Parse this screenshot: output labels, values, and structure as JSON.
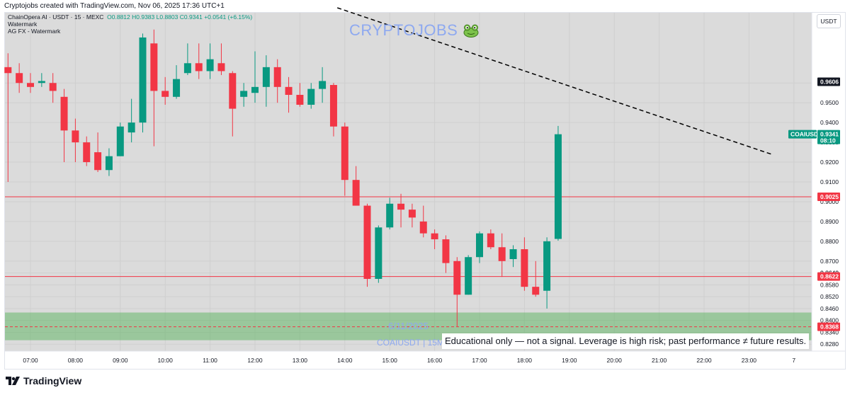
{
  "header": {
    "credit": "Cryptojobs created with TradingView.com, Nov 06, 2025 17:36 UTC+1"
  },
  "legend": {
    "title": "ChainOpera AI · USDT · 15 · MEXC",
    "ohlc": "O0.8812  H0.9383  L0.8803  C0.9341  +0.0541 (+6.15%)",
    "line2": "Watermark",
    "line3": "AG FX - Watermark"
  },
  "currency": "USDT",
  "watermark": {
    "brand": "CRYPTOJOBS",
    "date": "6/11/2025",
    "symbol": "COAIUSDT | 15M"
  },
  "disclaimer": "Educational only — not a signal. Leverage is high risk; past performance ≠ future results.",
  "footer": {
    "brand": "TradingView"
  },
  "colors": {
    "up": "#089981",
    "down": "#f23645",
    "zone": "#4caf50",
    "trendline": "#000000",
    "price_tag": "#089981",
    "level_tag": "#f23645"
  },
  "chart_data": {
    "type": "candlestick",
    "symbol": "COAIUSDT",
    "exchange": "MEXC",
    "timeframe": "15",
    "ylim": [
      0.8245,
      0.9955
    ],
    "y_ticks": [
      0.828,
      0.834,
      0.84,
      0.846,
      0.852,
      0.858,
      0.864,
      0.87,
      0.88,
      0.89,
      0.9,
      0.91,
      0.92,
      0.93,
      0.94,
      0.95,
      0.96
    ],
    "x_ticks": [
      "07:00",
      "08:00",
      "09:00",
      "10:00",
      "11:00",
      "12:00",
      "13:00",
      "14:00",
      "15:00",
      "16:00",
      "17:00",
      "18:00",
      "19:00",
      "20:00",
      "21:00",
      "22:00",
      "23:00",
      "7"
    ],
    "start_time": "06:30",
    "candles": [
      {
        "o": 0.968,
        "h": 0.975,
        "l": 0.91,
        "c": 0.965
      },
      {
        "o": 0.965,
        "h": 0.97,
        "l": 0.955,
        "c": 0.96
      },
      {
        "o": 0.96,
        "h": 0.965,
        "l": 0.955,
        "c": 0.958
      },
      {
        "o": 0.96,
        "h": 0.965,
        "l": 0.958,
        "c": 0.961
      },
      {
        "o": 0.96,
        "h": 0.965,
        "l": 0.95,
        "c": 0.956
      },
      {
        "o": 0.953,
        "h": 0.957,
        "l": 0.92,
        "c": 0.936
      },
      {
        "o": 0.936,
        "h": 0.942,
        "l": 0.92,
        "c": 0.93
      },
      {
        "o": 0.93,
        "h": 0.933,
        "l": 0.918,
        "c": 0.92
      },
      {
        "o": 0.925,
        "h": 0.935,
        "l": 0.915,
        "c": 0.916
      },
      {
        "o": 0.916,
        "h": 0.927,
        "l": 0.913,
        "c": 0.923
      },
      {
        "o": 0.923,
        "h": 0.94,
        "l": 0.923,
        "c": 0.938
      },
      {
        "o": 0.935,
        "h": 0.952,
        "l": 0.93,
        "c": 0.94
      },
      {
        "o": 0.94,
        "h": 0.985,
        "l": 0.935,
        "c": 0.983
      },
      {
        "o": 0.98,
        "h": 0.987,
        "l": 0.928,
        "c": 0.956
      },
      {
        "o": 0.956,
        "h": 0.963,
        "l": 0.949,
        "c": 0.953
      },
      {
        "o": 0.953,
        "h": 0.969,
        "l": 0.952,
        "c": 0.962
      },
      {
        "o": 0.965,
        "h": 0.98,
        "l": 0.964,
        "c": 0.97
      },
      {
        "o": 0.97,
        "h": 0.98,
        "l": 0.962,
        "c": 0.966
      },
      {
        "o": 0.966,
        "h": 0.98,
        "l": 0.962,
        "c": 0.972
      },
      {
        "o": 0.97,
        "h": 0.98,
        "l": 0.964,
        "c": 0.966
      },
      {
        "o": 0.965,
        "h": 0.966,
        "l": 0.933,
        "c": 0.947
      },
      {
        "o": 0.953,
        "h": 0.96,
        "l": 0.948,
        "c": 0.956
      },
      {
        "o": 0.955,
        "h": 0.976,
        "l": 0.95,
        "c": 0.958
      },
      {
        "o": 0.958,
        "h": 0.974,
        "l": 0.948,
        "c": 0.968
      },
      {
        "o": 0.968,
        "h": 0.972,
        "l": 0.95,
        "c": 0.958
      },
      {
        "o": 0.958,
        "h": 0.963,
        "l": 0.945,
        "c": 0.954
      },
      {
        "o": 0.954,
        "h": 0.96,
        "l": 0.948,
        "c": 0.949
      },
      {
        "o": 0.949,
        "h": 0.96,
        "l": 0.947,
        "c": 0.957
      },
      {
        "o": 0.957,
        "h": 0.968,
        "l": 0.95,
        "c": 0.961
      },
      {
        "o": 0.959,
        "h": 0.96,
        "l": 0.933,
        "c": 0.938
      },
      {
        "o": 0.938,
        "h": 0.94,
        "l": 0.903,
        "c": 0.911
      },
      {
        "o": 0.911,
        "h": 0.918,
        "l": 0.898,
        "c": 0.898
      },
      {
        "o": 0.898,
        "h": 0.899,
        "l": 0.857,
        "c": 0.861
      },
      {
        "o": 0.861,
        "h": 0.888,
        "l": 0.859,
        "c": 0.887
      },
      {
        "o": 0.887,
        "h": 0.902,
        "l": 0.886,
        "c": 0.899
      },
      {
        "o": 0.899,
        "h": 0.904,
        "l": 0.887,
        "c": 0.896
      },
      {
        "o": 0.896,
        "h": 0.899,
        "l": 0.887,
        "c": 0.892
      },
      {
        "o": 0.89,
        "h": 0.898,
        "l": 0.882,
        "c": 0.884
      },
      {
        "o": 0.884,
        "h": 0.886,
        "l": 0.876,
        "c": 0.881
      },
      {
        "o": 0.881,
        "h": 0.883,
        "l": 0.864,
        "c": 0.869
      },
      {
        "o": 0.87,
        "h": 0.872,
        "l": 0.837,
        "c": 0.853
      },
      {
        "o": 0.853,
        "h": 0.873,
        "l": 0.853,
        "c": 0.872
      },
      {
        "o": 0.872,
        "h": 0.885,
        "l": 0.869,
        "c": 0.884
      },
      {
        "o": 0.884,
        "h": 0.886,
        "l": 0.876,
        "c": 0.877
      },
      {
        "o": 0.877,
        "h": 0.884,
        "l": 0.862,
        "c": 0.87
      },
      {
        "o": 0.871,
        "h": 0.878,
        "l": 0.867,
        "c": 0.876
      },
      {
        "o": 0.876,
        "h": 0.882,
        "l": 0.855,
        "c": 0.857
      },
      {
        "o": 0.857,
        "h": 0.87,
        "l": 0.852,
        "c": 0.853
      },
      {
        "o": 0.855,
        "h": 0.882,
        "l": 0.846,
        "c": 0.88
      },
      {
        "o": 0.8812,
        "h": 0.9383,
        "l": 0.8803,
        "c": 0.9341
      }
    ],
    "levels": [
      {
        "name": "resistance",
        "value": 0.9025,
        "label": "0.9025"
      },
      {
        "name": "support",
        "value": 0.8622,
        "label": "0.8622"
      },
      {
        "name": "zone-mid",
        "value": 0.8368,
        "label": "0.8368"
      }
    ],
    "zone": {
      "from": 0.83,
      "to": 0.844
    },
    "trendline": {
      "from": {
        "time": "13:50",
        "price": 0.998
      },
      "to": {
        "time": "23:30",
        "price": 0.924
      }
    },
    "labels": {
      "high_tag": "0.9606",
      "last_symbol": "COAIUSDT",
      "last_price": "0.9341",
      "countdown": "08:10",
      "tick_mid": "0.8640"
    }
  }
}
